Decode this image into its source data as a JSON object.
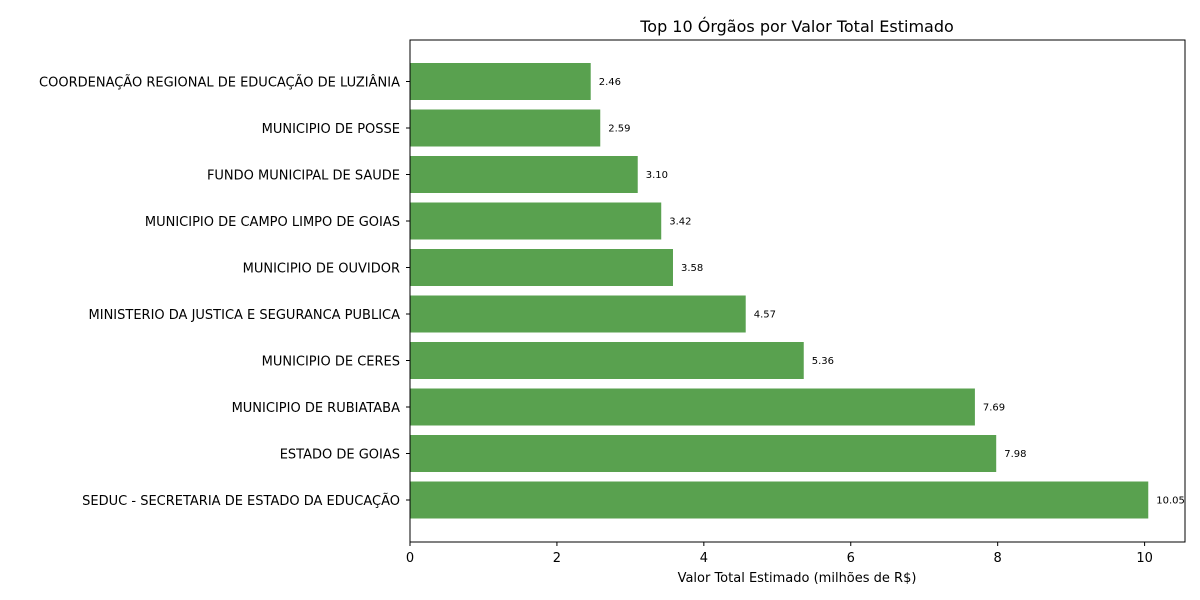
{
  "chart_data": {
    "type": "bar",
    "orientation": "horizontal",
    "title": "Top 10 Órgãos por Valor Total Estimado",
    "xlabel": "Valor Total Estimado (milhões de R$)",
    "ylabel": "",
    "xlim": [
      0,
      10.55
    ],
    "xticks": [
      0,
      2,
      4,
      6,
      8,
      10
    ],
    "categories": [
      "COORDENAÇÃO REGIONAL DE EDUCAÇÃO DE LUZIÂNIA",
      "MUNICIPIO DE POSSE",
      "FUNDO MUNICIPAL DE SAUDE",
      "MUNICIPIO DE CAMPO LIMPO DE GOIAS",
      "MUNICIPIO DE OUVIDOR",
      "MINISTERIO DA JUSTICA E SEGURANCA PUBLICA",
      "MUNICIPIO DE CERES",
      "MUNICIPIO DE RUBIATABA",
      "ESTADO DE GOIAS",
      "SEDUC - SECRETARIA DE ESTADO DA EDUCAÇÃO"
    ],
    "values": [
      2.46,
      2.59,
      3.1,
      3.42,
      3.58,
      4.57,
      5.36,
      7.69,
      7.98,
      10.05
    ],
    "value_labels": [
      "2.46",
      "2.59",
      "3.10",
      "3.42",
      "3.58",
      "4.57",
      "5.36",
      "7.69",
      "7.98",
      "10.05"
    ],
    "bar_color": "#59a14f",
    "grid": false,
    "legend": "none"
  }
}
